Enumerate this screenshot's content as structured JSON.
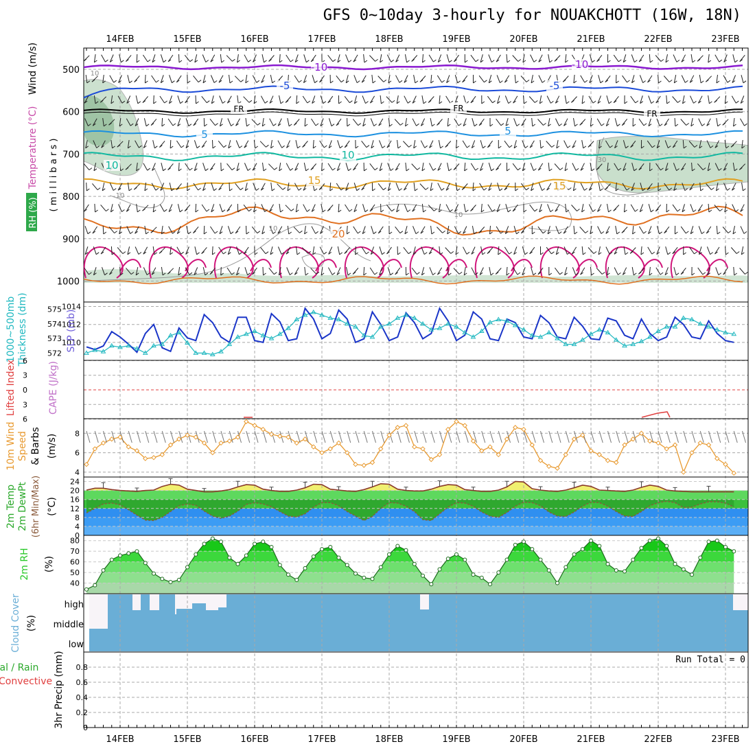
{
  "title": "GFS 0~10day 3-hourly for NOUAKCHOTT (16W, 18N)",
  "dates": [
    "14FEB",
    "15FEB",
    "16FEB",
    "17FEB",
    "18FEB",
    "19FEB",
    "20FEB",
    "21FEB",
    "22FEB",
    "23FEB"
  ],
  "colors": {
    "grid": "#aaaaaa",
    "slp": "#1a35c8",
    "thick": "#20b8c0",
    "wind": "#e89a30",
    "temp_fill_warm": "#f0f070",
    "temp_fill_band1": "#62d862",
    "temp_fill_band2": "#3cb43c",
    "dew_fill": "#3c8cf0",
    "rh_green": "#28c828",
    "cloud": "#6aaed6"
  },
  "panels": {
    "upper": {
      "ylabel_parts": [
        "Wind (m/s)",
        "Temperature (°C)",
        "RH (%)"
      ],
      "ylabel_axis": "( m i l l i b a r s )",
      "yticks": [
        "500",
        "600",
        "700",
        "800",
        "900",
        "1000"
      ]
    },
    "slp": {
      "ylabel1": "SLP (mb)",
      "ylabel2": "1000~500mb",
      "ylabel3": "Thickness (dm)",
      "left_ticks": [
        "575",
        "574",
        "573",
        "572"
      ],
      "right_ticks": [
        "1014",
        "1012",
        "1010"
      ]
    },
    "cape": {
      "ylabel1": "Lifted Index",
      "ylabel2": "CAPE (J/kg)",
      "yticks": [
        "6",
        "3",
        "0",
        "3",
        "6"
      ]
    },
    "wind10": {
      "ylabel1": "10m Wind",
      "ylabel2": "Speed",
      "ylabel3": "& Barbs",
      "ylabel4": "(m/s)",
      "yticks": [
        "8",
        "6",
        "4"
      ]
    },
    "temp2m": {
      "ylabel1": "2m Temp",
      "ylabel2": "2m DewPt",
      "ylabel3": "(6hr Min/Max)",
      "ylabel4": "(°C)",
      "yticks": [
        "24",
        "20",
        "16",
        "12",
        "8",
        "4",
        "0"
      ]
    },
    "rh2m": {
      "ylabel1": "2m RH",
      "ylabel2": "(%)",
      "yticks": [
        "80",
        "70",
        "60",
        "50",
        "40"
      ]
    },
    "cloud": {
      "ylabel1": "Cloud Cover",
      "ylabel2": "(%)",
      "levels": [
        "high",
        "middle",
        "low"
      ]
    },
    "precip": {
      "ylabel1": "tal / Rain",
      "ylabel2": "Convective",
      "ylabel3": "3hr Precip (mm)",
      "yticks": [
        "0.8",
        "0.6",
        "0.4",
        "0.2",
        "0"
      ],
      "run_total": "Run Total = 0"
    }
  },
  "upper_labels": {
    "isotherms": [
      "-10",
      "-10",
      "-5",
      "-5",
      "FR",
      "FR",
      "FR",
      "5",
      "5",
      "10",
      "10",
      "15",
      "15",
      "20"
    ],
    "rh": [
      "10",
      "10",
      "10",
      "10",
      "30"
    ]
  },
  "chart_data": [
    {
      "type": "line",
      "title": "SLP (mb) / 1000~500mb Thickness (dm)",
      "x_unit": "3-hourly steps from 13FEB 12Z",
      "ylim_slp": [
        1008,
        1014.5
      ],
      "ylim_thickness": [
        571.5,
        575.5
      ],
      "series": [
        {
          "name": "SLP (mb)",
          "values": [
            1009.5,
            1009.2,
            1009.6,
            1011.2,
            1010.6,
            1009.8,
            1008.9,
            1011.0,
            1012.0,
            1009.4,
            1009.0,
            1011.6,
            1010.5,
            1010.2,
            1013.1,
            1012.2,
            1010.6,
            1010.0,
            1012.8,
            1012.8,
            1010.2,
            1010.0,
            1013.2,
            1012.3,
            1010.2,
            1010.4,
            1013.8,
            1012.6,
            1010.4,
            1011.0,
            1013.6,
            1012.6,
            1010.0,
            1010.4,
            1013.4,
            1012.0,
            1010.2,
            1010.6,
            1013.3,
            1012.2,
            1010.4,
            1011.0,
            1013.8,
            1012.4,
            1010.2,
            1010.8,
            1013.4,
            1012.6,
            1010.4,
            1010.2,
            1012.6,
            1012.2,
            1010.6,
            1010.4,
            1013.0,
            1012.2,
            1010.6,
            1010.4,
            1012.8,
            1011.8,
            1010.4,
            1010.3,
            1012.7,
            1012.4,
            1010.8,
            1010.4,
            1012.6,
            1011.0,
            1010.2,
            1010.6,
            1012.8,
            1012.0,
            1010.6,
            1010.4,
            1012.4,
            1011.0,
            1010.2,
            1010.0
          ]
        },
        {
          "name": "1000~500mb Thickness (dm)",
          "values": [
            572.0,
            572.2,
            572.1,
            572.5,
            572.4,
            572.5,
            572.3,
            572.0,
            572.5,
            572.6,
            573.2,
            573.4,
            572.7,
            572.0,
            572.0,
            571.9,
            572.1,
            572.6,
            573.1,
            573.3,
            573.5,
            573.2,
            573.0,
            573.3,
            573.7,
            574.3,
            574.6,
            574.8,
            574.6,
            574.4,
            574.3,
            574.0,
            573.8,
            573.2,
            573.1,
            573.8,
            574.0,
            574.4,
            574.6,
            574.4,
            574.0,
            573.6,
            573.7,
            574.0,
            573.8,
            573.4,
            573.1,
            573.5,
            574.1,
            574.3,
            574.2,
            573.9,
            573.6,
            573.2,
            573.1,
            573.4,
            573.0,
            572.6,
            572.6,
            572.9,
            573.3,
            573.6,
            573.4,
            572.9,
            572.5,
            572.6,
            572.8,
            573.1,
            573.5,
            573.8,
            573.8,
            574.4,
            574.3,
            574.0,
            573.8,
            573.6,
            573.4,
            573.3
          ]
        }
      ]
    },
    {
      "type": "line",
      "title": "10m Wind Speed (m/s)",
      "ylim": [
        3.5,
        9.5
      ],
      "series": [
        {
          "name": "10m Wind Speed",
          "values": [
            4.8,
            6.4,
            7.0,
            7.4,
            7.6,
            6.6,
            6.2,
            5.4,
            5.5,
            5.8,
            6.8,
            7.4,
            7.8,
            7.6,
            7.0,
            6.0,
            7.0,
            7.2,
            7.6,
            9.2,
            8.8,
            8.4,
            7.9,
            7.7,
            7.6,
            7.0,
            7.4,
            6.6,
            6.0,
            6.4,
            7.0,
            6.0,
            4.8,
            4.7,
            5.0,
            6.4,
            7.8,
            8.6,
            8.8,
            6.6,
            6.4,
            5.3,
            5.8,
            8.4,
            9.2,
            8.8,
            7.2,
            6.2,
            6.6,
            5.8,
            7.4,
            8.6,
            8.4,
            6.8,
            5.2,
            4.6,
            4.4,
            5.8,
            7.4,
            7.8,
            6.2,
            5.8,
            5.2,
            5.0,
            6.8,
            7.4,
            8.0,
            7.2,
            7.0,
            6.4,
            6.8,
            4.0,
            6.0,
            7.0,
            6.8,
            5.4,
            4.8,
            3.9
          ]
        }
      ]
    },
    {
      "type": "area",
      "title": "2m Temp / 2m DewPt (°C)",
      "ylim": [
        0,
        26
      ],
      "series": [
        {
          "name": "2m Temp",
          "values": [
            20.2,
            21.0,
            21.0,
            20.4,
            20.0,
            19.8,
            19.6,
            20.0,
            20.2,
            21.8,
            22.8,
            22.4,
            20.6,
            20.0,
            19.4,
            19.4,
            19.8,
            20.4,
            21.6,
            22.6,
            22.4,
            20.6,
            20.0,
            19.6,
            19.6,
            20.2,
            21.2,
            22.8,
            22.6,
            20.6,
            20.2,
            19.8,
            19.6,
            20.4,
            21.6,
            23.0,
            22.8,
            20.6,
            20.0,
            19.8,
            19.8,
            20.6,
            21.8,
            22.6,
            22.4,
            20.4,
            20.0,
            19.6,
            19.6,
            20.2,
            21.6,
            24.0,
            23.8,
            20.8,
            20.2,
            19.8,
            19.6,
            20.2,
            21.2,
            22.4,
            21.8,
            20.2,
            20.0,
            19.8,
            19.6,
            20.2,
            21.4,
            22.4,
            21.8,
            20.2,
            19.8,
            19.6,
            19.4,
            19.4,
            19.4,
            19.4,
            19.4,
            19.4
          ]
        },
        {
          "name": "2m DewPt",
          "values": [
            10.0,
            12.0,
            14.0,
            14.4,
            13.6,
            11.4,
            9.0,
            6.8,
            6.6,
            8.0,
            10.6,
            13.2,
            14.0,
            13.4,
            10.8,
            8.6,
            7.6,
            8.6,
            10.8,
            13.8,
            14.6,
            14.0,
            12.8,
            10.6,
            8.6,
            8.2,
            9.6,
            12.6,
            14.6,
            14.6,
            13.2,
            10.6,
            8.6,
            6.6,
            8.4,
            12.0,
            14.6,
            14.4,
            13.0,
            10.6,
            7.0,
            6.6,
            9.6,
            12.6,
            14.6,
            14.4,
            13.0,
            10.4,
            8.6,
            8.0,
            10.2,
            13.0,
            14.8,
            14.6,
            13.2,
            10.4,
            8.6,
            8.4,
            10.4,
            13.0,
            14.8,
            14.6,
            13.0,
            10.6,
            8.6,
            8.4,
            10.6,
            13.2,
            14.6,
            15.2,
            14.6,
            12.4,
            12.6,
            14.0,
            15.0,
            15.0,
            14.4,
            12.6
          ]
        }
      ]
    },
    {
      "type": "area",
      "title": "2m RH (%)",
      "ylim": [
        30,
        85
      ],
      "series": [
        {
          "name": "2m RH",
          "values": [
            34,
            38,
            52,
            62,
            66,
            68,
            70,
            59,
            49,
            44,
            41,
            43,
            55,
            67,
            77,
            82,
            79,
            64,
            58,
            66,
            77,
            79,
            74,
            57,
            48,
            43,
            54,
            65,
            72,
            74,
            64,
            57,
            49,
            45,
            44,
            55,
            67,
            75,
            71,
            58,
            47,
            39,
            53,
            63,
            67,
            62,
            48,
            45,
            39,
            50,
            62,
            76,
            79,
            72,
            62,
            52,
            40,
            55,
            67,
            72,
            80,
            75,
            58,
            52,
            51,
            62,
            73,
            80,
            82,
            75,
            58,
            53,
            48,
            64,
            79,
            80,
            74,
            70
          ]
        }
      ]
    }
  ]
}
